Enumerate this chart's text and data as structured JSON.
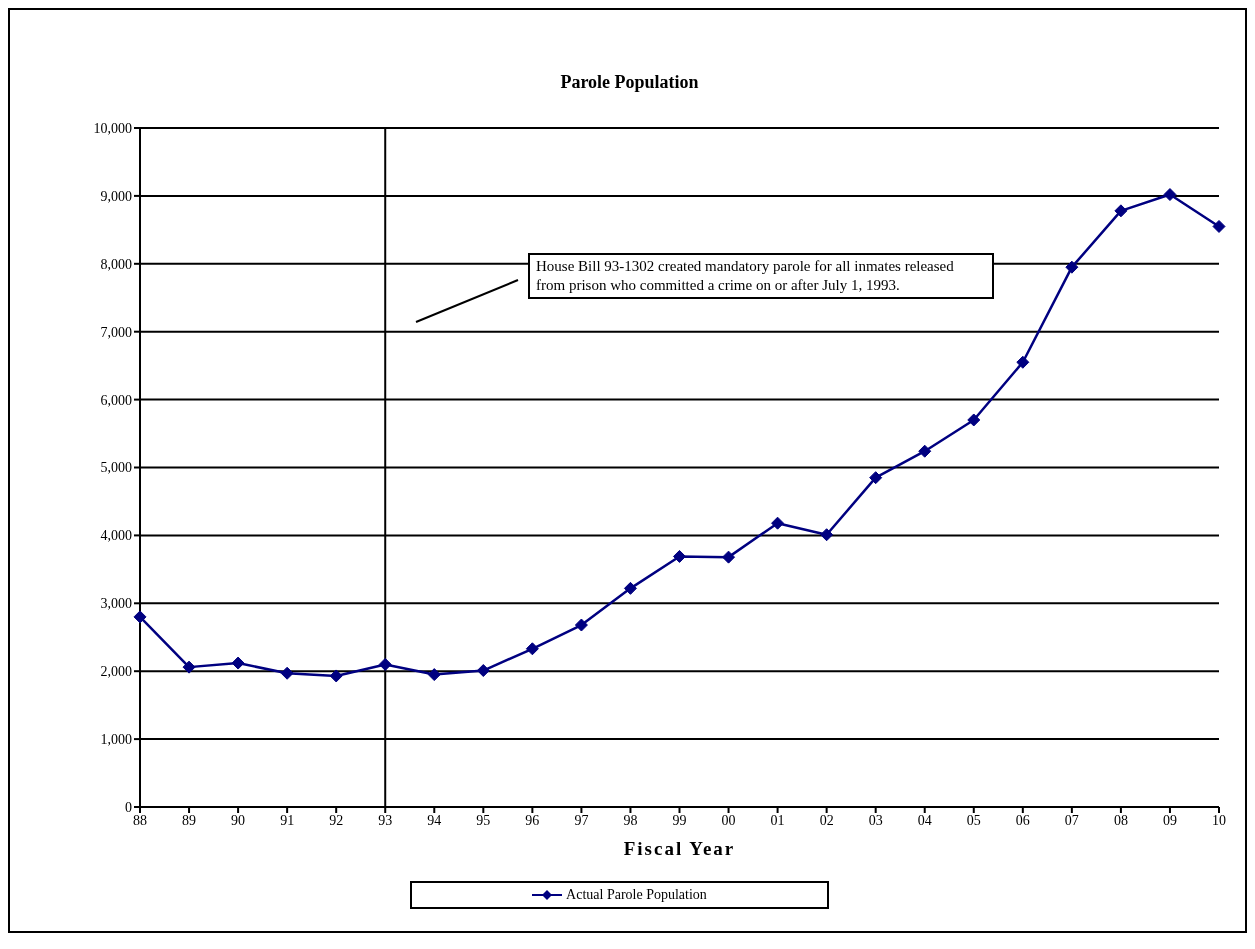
{
  "chart_data": {
    "type": "line",
    "title": "Parole Population",
    "xlabel": "Fiscal Year",
    "categories": [
      "88",
      "89",
      "90",
      "91",
      "92",
      "93",
      "94",
      "95",
      "96",
      "97",
      "98",
      "99",
      "00",
      "01",
      "02",
      "03",
      "04",
      "05",
      "06",
      "07",
      "08",
      "09",
      "10"
    ],
    "series": [
      {
        "name": "Actual Parole Population",
        "color": "#000080",
        "values": [
          2800,
          2060,
          2120,
          1970,
          1930,
          2100,
          1950,
          2010,
          2330,
          2680,
          3220,
          3690,
          3680,
          4180,
          4010,
          4850,
          5240,
          5700,
          6550,
          7950,
          8780,
          9020,
          8550
        ]
      }
    ],
    "ylim": [
      0,
      10000
    ],
    "yticks": [
      {
        "value": 0,
        "label": "0"
      },
      {
        "value": 1000,
        "label": "1,000"
      },
      {
        "value": 2000,
        "label": "2,000"
      },
      {
        "value": 3000,
        "label": "3,000"
      },
      {
        "value": 4000,
        "label": "4,000"
      },
      {
        "value": 5000,
        "label": "5,000"
      },
      {
        "value": 6000,
        "label": "6,000"
      },
      {
        "value": 7000,
        "label": "7,000"
      },
      {
        "value": 8000,
        "label": "8,000"
      },
      {
        "value": 9000,
        "label": "9,000"
      },
      {
        "value": 10000,
        "label": "10,000"
      }
    ],
    "grid": "y",
    "legend": "bottom",
    "marker": "diamond",
    "line_style": "solid",
    "ref_lines": [
      {
        "axis": "x",
        "value": "93",
        "color": "#000000"
      }
    ],
    "annotations": [
      "House Bill 93-1302 created mandatory parole for all inmates released from prison who committed a crime on or after July 1, 1993."
    ]
  }
}
